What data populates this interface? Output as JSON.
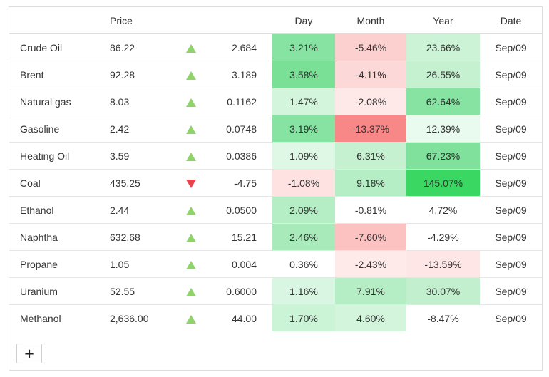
{
  "table": {
    "headers": {
      "name": "",
      "price": "Price",
      "arrow": "",
      "change": "",
      "day": "Day",
      "month": "Month",
      "year": "Year",
      "date": "Date"
    },
    "rows": [
      {
        "name": "Crude Oil",
        "price": "86.22",
        "direction": "up",
        "change": "2.684",
        "day": "3.21%",
        "month": "-5.46%",
        "year": "23.66%",
        "date": "Sep/09",
        "day_color": "#86e3a1",
        "month_color": "#fdd0d0",
        "year_color": "#cdf3d7"
      },
      {
        "name": "Brent",
        "price": "92.28",
        "direction": "up",
        "change": "3.189",
        "day": "3.58%",
        "month": "-4.11%",
        "year": "26.55%",
        "date": "Sep/09",
        "day_color": "#79e096",
        "month_color": "#fdd8d8",
        "year_color": "#c6f1d1"
      },
      {
        "name": "Natural gas",
        "price": "8.03",
        "direction": "up",
        "change": "0.1162",
        "day": "1.47%",
        "month": "-2.08%",
        "year": "62.64%",
        "date": "Sep/09",
        "day_color": "#d2f5dc",
        "month_color": "#ffe8e8",
        "year_color": "#86e3a1"
      },
      {
        "name": "Gasoline",
        "price": "2.42",
        "direction": "up",
        "change": "0.0748",
        "day": "3.19%",
        "month": "-13.37%",
        "year": "12.39%",
        "date": "Sep/09",
        "day_color": "#86e3a1",
        "month_color": "#f88888",
        "year_color": "#e9faee"
      },
      {
        "name": "Heating Oil",
        "price": "3.59",
        "direction": "up",
        "change": "0.0386",
        "day": "1.09%",
        "month": "6.31%",
        "year": "67.23%",
        "date": "Sep/09",
        "day_color": "#dff8e6",
        "month_color": "#c6f1d1",
        "year_color": "#80e19c"
      },
      {
        "name": "Coal",
        "price": "435.25",
        "direction": "down",
        "change": "-4.75",
        "day": "-1.08%",
        "month": "9.18%",
        "year": "145.07%",
        "date": "Sep/09",
        "day_color": "#fee2e2",
        "month_color": "#b5edc4",
        "year_color": "#3ad763"
      },
      {
        "name": "Ethanol",
        "price": "2.44",
        "direction": "up",
        "change": "0.0500",
        "day": "2.09%",
        "month": "-0.81%",
        "year": "4.72%",
        "date": "Sep/09",
        "day_color": "#b5edc4",
        "month_color": "#ffffff",
        "year_color": "#ffffff"
      },
      {
        "name": "Naphtha",
        "price": "632.68",
        "direction": "up",
        "change": "15.21",
        "day": "2.46%",
        "month": "-7.60%",
        "year": "-4.29%",
        "date": "Sep/09",
        "day_color": "#a8eab9",
        "month_color": "#fcc2c2",
        "year_color": "#ffffff"
      },
      {
        "name": "Propane",
        "price": "1.05",
        "direction": "up",
        "change": "0.004",
        "day": "0.36%",
        "month": "-2.43%",
        "year": "-13.59%",
        "date": "Sep/09",
        "day_color": "#ffffff",
        "month_color": "#ffeaea",
        "year_color": "#ffe6e6"
      },
      {
        "name": "Uranium",
        "price": "52.55",
        "direction": "up",
        "change": "0.6000",
        "day": "1.16%",
        "month": "7.91%",
        "year": "30.07%",
        "date": "Sep/09",
        "day_color": "#d8f6e1",
        "month_color": "#b5edc4",
        "year_color": "#c2f0ce"
      },
      {
        "name": "Methanol",
        "price": "2,636.00",
        "direction": "up",
        "change": "44.00",
        "day": "1.70%",
        "month": "4.60%",
        "year": "-8.47%",
        "date": "Sep/09",
        "day_color": "#cbf3d6",
        "month_color": "#d2f5dc",
        "year_color": "#ffffff"
      }
    ]
  },
  "add_button": {
    "label": "+"
  }
}
